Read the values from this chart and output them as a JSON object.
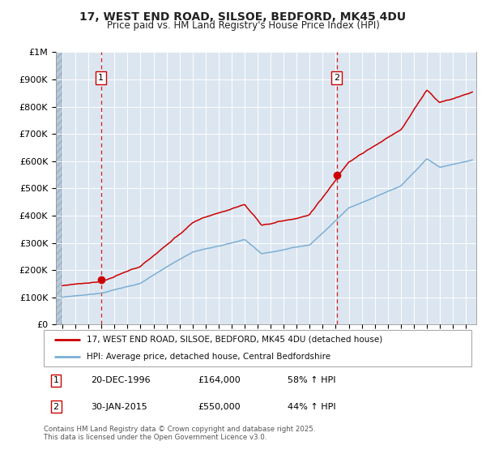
{
  "title_line1": "17, WEST END ROAD, SILSOE, BEDFORD, MK45 4DU",
  "title_line2": "Price paid vs. HM Land Registry's House Price Index (HPI)",
  "background_color": "#ffffff",
  "plot_bg_color": "#dce6f1",
  "grid_color": "#ffffff",
  "hatch_color": "#b8c8d8",
  "red_color": "#cc0000",
  "blue_color": "#7bafd4",
  "sale1_t": 1996.97,
  "sale1_v": 164000,
  "sale2_t": 2015.08,
  "sale2_v": 550000,
  "legend_line1": "17, WEST END ROAD, SILSOE, BEDFORD, MK45 4DU (detached house)",
  "legend_line2": "HPI: Average price, detached house, Central Bedfordshire",
  "note1_label": "1",
  "note1_date": "20-DEC-1996",
  "note1_price": "£164,000",
  "note1_hpi": "58% ↑ HPI",
  "note2_label": "2",
  "note2_date": "30-JAN-2015",
  "note2_price": "£550,000",
  "note2_hpi": "44% ↑ HPI",
  "copyright": "Contains HM Land Registry data © Crown copyright and database right 2025.\nThis data is licensed under the Open Government Licence v3.0.",
  "xmin": 1993.5,
  "xmax": 2025.8,
  "ymin": 0,
  "ymax": 1000000,
  "yticks": [
    0,
    100000,
    200000,
    300000,
    400000,
    500000,
    600000,
    700000,
    800000,
    900000,
    1000000
  ],
  "ytick_labels": [
    "£0",
    "£100K",
    "£200K",
    "£300K",
    "£400K",
    "£500K",
    "£600K",
    "£700K",
    "£800K",
    "£900K",
    "£1M"
  ]
}
